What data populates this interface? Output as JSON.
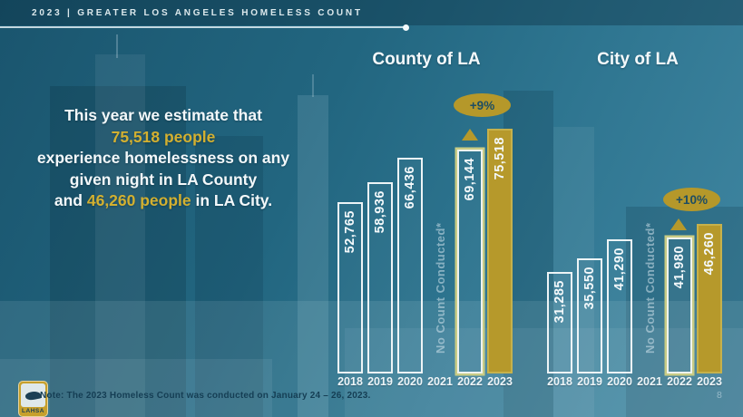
{
  "header": {
    "title": "2023 | GREATER LOS ANGELES HOMELESS COUNT"
  },
  "intro": {
    "line1": "This year we estimate that",
    "line2": "75,518 people",
    "line3": "experience homelessness on any",
    "line4": "given night in LA County",
    "line5_prefix": "and ",
    "line5_highlight": "46,260 people",
    "line5_suffix": " in LA City."
  },
  "colors": {
    "background_teal": "#2e7590",
    "accent_gold": "#b6992b",
    "highlight_text_gold": "#d3b030",
    "bar_outline_white": "#edf4f6",
    "badge_text_teal": "#1d4d63"
  },
  "chart_data": [
    {
      "type": "bar",
      "dom": "county",
      "title": "County of LA",
      "categories": [
        "2018",
        "2019",
        "2020",
        "2021",
        "2022",
        "2023"
      ],
      "values": [
        52765,
        58936,
        66436,
        null,
        69144,
        75518
      ],
      "labels": [
        "52,765",
        "58,936",
        "66,436",
        "No Count Conducted*",
        "69,144",
        "75,518"
      ],
      "bar_styles": [
        "outline",
        "outline",
        "outline",
        "none",
        "outline-gold",
        "solid-gold"
      ],
      "change_badge": "+9%",
      "no_count_label": "No Count Conducted*",
      "ylim": [
        0,
        75518
      ],
      "legend": "none",
      "grid": "off"
    },
    {
      "type": "bar",
      "dom": "city",
      "title": "City of LA",
      "categories": [
        "2018",
        "2019",
        "2020",
        "2021",
        "2022",
        "2023"
      ],
      "values": [
        31285,
        35550,
        41290,
        null,
        41980,
        46260
      ],
      "labels": [
        "31,285",
        "35,550",
        "41,290",
        "No Count Conducted*",
        "41,980",
        "46,260"
      ],
      "bar_styles": [
        "outline",
        "outline",
        "outline",
        "none",
        "outline-gold",
        "solid-gold"
      ],
      "change_badge": "+10%",
      "no_count_label": "No Count Conducted*",
      "ylim": [
        0,
        75518
      ],
      "legend": "none",
      "grid": "off"
    }
  ],
  "footer": {
    "note": "Note: The 2023 Homeless Count was conducted on January 24 – 26, 2023.",
    "page_number": "8",
    "logo_text": "LAHSA"
  }
}
